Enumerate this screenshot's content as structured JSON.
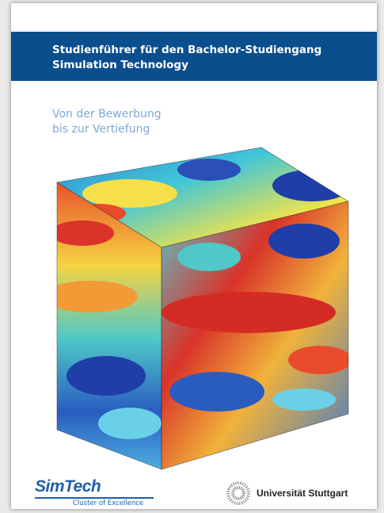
{
  "header": {
    "title_lines": [
      "Studienführer für den Bachelor-Studiengang",
      "Simulation Technology"
    ]
  },
  "subtitle_lines": [
    "Von der Bewerbung",
    "bis zur Vertiefung"
  ],
  "footer": {
    "simtech_logo": "SimTech",
    "simtech_tagline": "Cluster of Excellence",
    "university": "Universität Stuttgart"
  }
}
